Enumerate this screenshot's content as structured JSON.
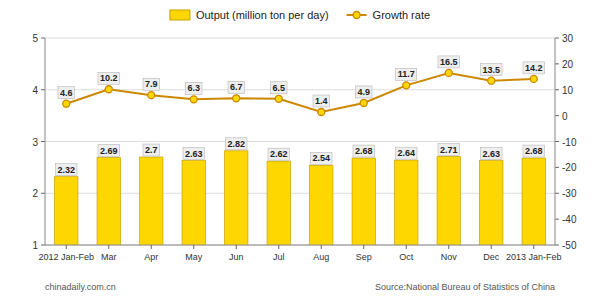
{
  "chart_data": {
    "type": "bar",
    "categories": [
      "2012 Jan-Feb",
      "Mar",
      "Apr",
      "May",
      "Jun",
      "Jul",
      "Aug",
      "Sep",
      "Oct",
      "Nov",
      "Dec",
      "2013 Jan-Feb"
    ],
    "series": [
      {
        "name": "Output (million ton per day)",
        "type": "bar",
        "color": "#FFD700",
        "values": [
          2.32,
          2.69,
          2.7,
          2.63,
          2.82,
          2.62,
          2.54,
          2.68,
          2.64,
          2.71,
          2.63,
          2.68
        ]
      },
      {
        "name": "Growth rate",
        "type": "line",
        "axis": "y2",
        "color": "#CC8800",
        "marker": "circle",
        "values": [
          4.6,
          10.2,
          7.9,
          6.3,
          6.7,
          6.5,
          1.4,
          4.9,
          11.7,
          16.5,
          13.5,
          14.2
        ]
      }
    ],
    "ylim": [
      1,
      5
    ],
    "yticks": [
      1,
      2,
      3,
      4,
      5
    ],
    "y2lim": [
      -50,
      30
    ],
    "y2ticks": [
      -50,
      -40,
      -30,
      -20,
      -10,
      0,
      10,
      20,
      30
    ],
    "grid": true,
    "legend": "top",
    "data_labels": true,
    "annotations": [
      "chinadaily.com.cn",
      "Source:National Bureau of Statistics of China"
    ]
  }
}
